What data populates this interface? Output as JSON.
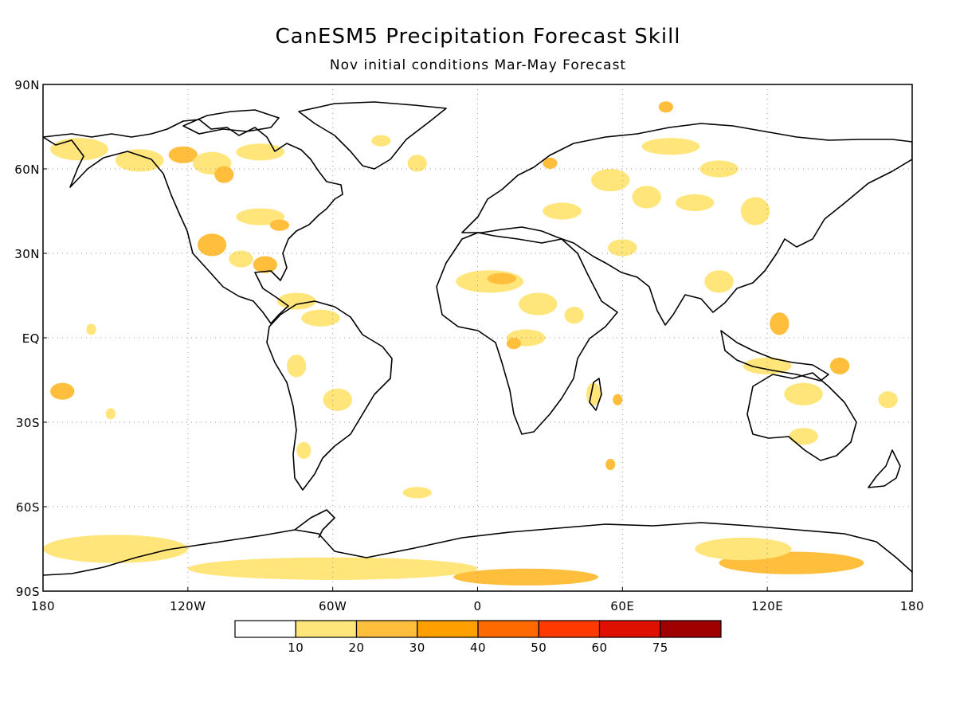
{
  "title": "CanESM5 Precipitation Forecast Skill",
  "subtitle": "Nov initial conditions   Mar-May Forecast",
  "lat_labels": [
    "90N",
    "60N",
    "30N",
    "EQ",
    "30S",
    "60S",
    "90S"
  ],
  "lon_labels": [
    "180",
    "120W",
    "60W",
    "0",
    "60E",
    "120E",
    "180"
  ],
  "colorbar": {
    "labels": [
      "10",
      "20",
      "30",
      "40",
      "50",
      "60",
      "75"
    ],
    "colors": [
      "#ffffff",
      "#ffe57a",
      "#ffbf3c",
      "#ffa000",
      "#ff6a00",
      "#ff3a00",
      "#e01000",
      "#a00000"
    ]
  },
  "colors": {
    "land_outline": "#000000",
    "grid": "#999999",
    "frame": "#000000"
  },
  "skill_regions": [
    {
      "level": 1,
      "lon": -165,
      "lat": 67,
      "rx": 12,
      "ry": 4
    },
    {
      "level": 1,
      "lon": -140,
      "lat": 63,
      "rx": 10,
      "ry": 4
    },
    {
      "level": 2,
      "lon": -122,
      "lat": 65,
      "rx": 6,
      "ry": 3
    },
    {
      "level": 1,
      "lon": -110,
      "lat": 62,
      "rx": 8,
      "ry": 4
    },
    {
      "level": 2,
      "lon": -105,
      "lat": 58,
      "rx": 4,
      "ry": 3
    },
    {
      "level": 1,
      "lon": -90,
      "lat": 66,
      "rx": 10,
      "ry": 3
    },
    {
      "level": 1,
      "lon": -40,
      "lat": 70,
      "rx": 4,
      "ry": 2
    },
    {
      "level": 1,
      "lon": -25,
      "lat": 62,
      "rx": 4,
      "ry": 3
    },
    {
      "level": 1,
      "lon": -90,
      "lat": 43,
      "rx": 10,
      "ry": 3
    },
    {
      "level": 2,
      "lon": -82,
      "lat": 40,
      "rx": 4,
      "ry": 2
    },
    {
      "level": 2,
      "lon": -110,
      "lat": 33,
      "rx": 6,
      "ry": 4
    },
    {
      "level": 1,
      "lon": -98,
      "lat": 28,
      "rx": 5,
      "ry": 3
    },
    {
      "level": 2,
      "lon": -88,
      "lat": 26,
      "rx": 5,
      "ry": 3
    },
    {
      "level": 1,
      "lon": -75,
      "lat": 13,
      "rx": 8,
      "ry": 3
    },
    {
      "level": 1,
      "lon": -65,
      "lat": 7,
      "rx": 8,
      "ry": 3
    },
    {
      "level": 1,
      "lon": -75,
      "lat": -10,
      "rx": 4,
      "ry": 4
    },
    {
      "level": 1,
      "lon": -58,
      "lat": -22,
      "rx": 6,
      "ry": 4
    },
    {
      "level": 1,
      "lon": -72,
      "lat": -40,
      "rx": 3,
      "ry": 3
    },
    {
      "level": 2,
      "lon": -172,
      "lat": -19,
      "rx": 5,
      "ry": 3
    },
    {
      "level": 1,
      "lon": -152,
      "lat": -27,
      "rx": 2,
      "ry": 2
    },
    {
      "level": 1,
      "lon": -160,
      "lat": 3,
      "rx": 2,
      "ry": 2
    },
    {
      "level": 1,
      "lon": 5,
      "lat": 20,
      "rx": 14,
      "ry": 4
    },
    {
      "level": 2,
      "lon": 10,
      "lat": 21,
      "rx": 6,
      "ry": 2
    },
    {
      "level": 1,
      "lon": 25,
      "lat": 12,
      "rx": 8,
      "ry": 4
    },
    {
      "level": 1,
      "lon": 20,
      "lat": 0,
      "rx": 8,
      "ry": 3
    },
    {
      "level": 2,
      "lon": 15,
      "lat": -2,
      "rx": 3,
      "ry": 2
    },
    {
      "level": 1,
      "lon": 40,
      "lat": 8,
      "rx": 4,
      "ry": 3
    },
    {
      "level": 1,
      "lon": 48,
      "lat": -20,
      "rx": 3,
      "ry": 4
    },
    {
      "level": 2,
      "lon": 58,
      "lat": -22,
      "rx": 2,
      "ry": 2
    },
    {
      "level": 1,
      "lon": 35,
      "lat": 45,
      "rx": 8,
      "ry": 3
    },
    {
      "level": 2,
      "lon": 30,
      "lat": 62,
      "rx": 3,
      "ry": 2
    },
    {
      "level": 1,
      "lon": 55,
      "lat": 56,
      "rx": 8,
      "ry": 4
    },
    {
      "level": 1,
      "lon": 70,
      "lat": 50,
      "rx": 6,
      "ry": 4
    },
    {
      "level": 1,
      "lon": 90,
      "lat": 48,
      "rx": 8,
      "ry": 3
    },
    {
      "level": 1,
      "lon": 100,
      "lat": 60,
      "rx": 8,
      "ry": 3
    },
    {
      "level": 1,
      "lon": 115,
      "lat": 45,
      "rx": 6,
      "ry": 5
    },
    {
      "level": 1,
      "lon": 60,
      "lat": 32,
      "rx": 6,
      "ry": 3
    },
    {
      "level": 1,
      "lon": 80,
      "lat": 68,
      "rx": 12,
      "ry": 3
    },
    {
      "level": 2,
      "lon": 78,
      "lat": 82,
      "rx": 3,
      "ry": 2
    },
    {
      "level": 1,
      "lon": 100,
      "lat": 20,
      "rx": 6,
      "ry": 4
    },
    {
      "level": 2,
      "lon": 125,
      "lat": 5,
      "rx": 4,
      "ry": 4
    },
    {
      "level": 1,
      "lon": 120,
      "lat": -10,
      "rx": 10,
      "ry": 3
    },
    {
      "level": 1,
      "lon": 135,
      "lat": -20,
      "rx": 8,
      "ry": 4
    },
    {
      "level": 2,
      "lon": 150,
      "lat": -10,
      "rx": 4,
      "ry": 3
    },
    {
      "level": 1,
      "lon": 135,
      "lat": -35,
      "rx": 6,
      "ry": 3
    },
    {
      "level": 1,
      "lon": 170,
      "lat": -22,
      "rx": 4,
      "ry": 3
    },
    {
      "level": 2,
      "lon": 55,
      "lat": -45,
      "rx": 2,
      "ry": 2
    },
    {
      "level": 1,
      "lon": -25,
      "lat": -55,
      "rx": 6,
      "ry": 2
    },
    {
      "level": 1,
      "lon": -150,
      "lat": -75,
      "rx": 30,
      "ry": 5
    },
    {
      "level": 1,
      "lon": -60,
      "lat": -82,
      "rx": 60,
      "ry": 4
    },
    {
      "level": 2,
      "lon": 20,
      "lat": -85,
      "rx": 30,
      "ry": 3
    },
    {
      "level": 2,
      "lon": 130,
      "lat": -80,
      "rx": 30,
      "ry": 4
    },
    {
      "level": 1,
      "lon": 110,
      "lat": -75,
      "rx": 20,
      "ry": 4
    }
  ]
}
